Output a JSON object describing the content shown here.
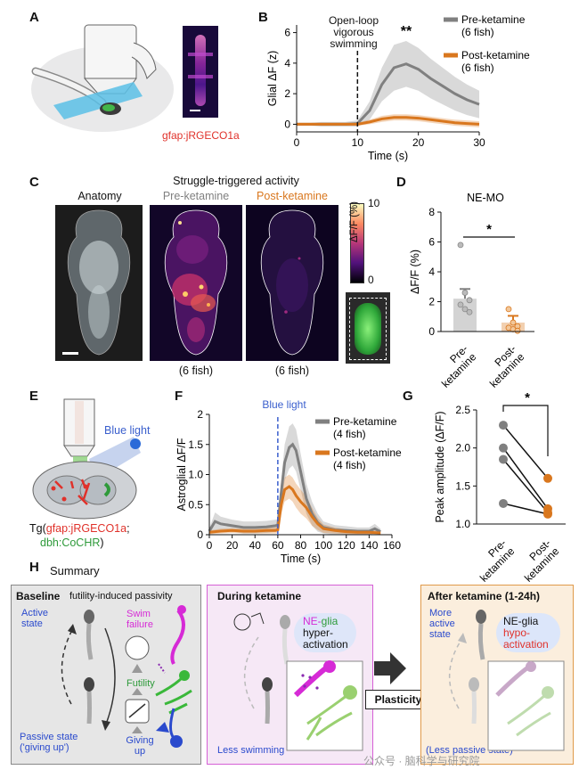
{
  "panels": {
    "a": {
      "label": "A",
      "indicator": "gfap:jRGECO1a"
    },
    "b": {
      "label": "B"
    },
    "c": {
      "label": "C",
      "title": "Struggle-triggered activity",
      "col_anatomy": "Anatomy",
      "col_pre": "Pre-ketamine",
      "col_post": "Post-ketamine",
      "n_pre": "(6 fish)",
      "n_post": "(6 fish)",
      "cbar_max": "10",
      "cbar_min": "0",
      "cbar_label": "ΔF/F (%)"
    },
    "d": {
      "label": "D"
    },
    "e": {
      "label": "E",
      "blue_light": "Blue light",
      "tg_prefix": "Tg(",
      "tg_gfap": "gfap:jRGECO1a",
      "tg_sep": ";",
      "tg_dbh": "dbh:CoCHR",
      "tg_suffix": ")"
    },
    "f": {
      "label": "F"
    },
    "g": {
      "label": "G"
    },
    "h": {
      "label": "H",
      "title": "Summary",
      "baseline": {
        "title": "Baseline",
        "subtitle": "futility-induced passivity",
        "active": "Active\nstate",
        "passive": "Passive state\n('giving up')",
        "swim_failure": "Swim\nfailure",
        "integral": "∫dt",
        "futility": "Futility",
        "giving_up": "Giving\nup"
      },
      "during": {
        "title": "During ketamine",
        "ne": "NE-",
        "glia": "glia",
        "hyper": "hyper-\nactivation",
        "less": "Less swimming"
      },
      "plasticity": "Plasticity",
      "after": {
        "title": "After ketamine (1-24h)",
        "more": "More\nactive\nstate",
        "ne_glia": "NE-glia",
        "hypo": "hypo-\nactivation",
        "less_passive": "(Less passive state)"
      }
    },
    "watermark": "公众号 · 脑科学与研究院"
  },
  "colors": {
    "pre": "#808080",
    "post": "#d9771e",
    "red": "#e0312a",
    "green": "#2e9a3a",
    "blue": "#3a5fcd",
    "magenta": "#d62ad6",
    "orange_box": "#e09a4a"
  },
  "chart_data": [
    {
      "id": "B",
      "type": "line",
      "xlabel": "Time (s)",
      "ylabel": "Glial ΔF (z)",
      "xlim": [
        0,
        30
      ],
      "ylim": [
        -0.5,
        6.5
      ],
      "xticks": [
        0,
        10,
        20,
        30
      ],
      "yticks": [
        0,
        2,
        4,
        6
      ],
      "annotation": "Open-loop\nvigorous\nswimming",
      "annotation_x": 10,
      "significance": "**",
      "series": [
        {
          "name": "Pre-ketamine\n(6 fish)",
          "color": "#808080",
          "x": [
            0,
            4,
            8,
            10,
            12,
            14,
            16,
            18,
            20,
            22,
            24,
            26,
            28,
            30
          ],
          "y": [
            0,
            0,
            0,
            0.05,
            0.9,
            2.6,
            3.7,
            3.95,
            3.6,
            3.0,
            2.5,
            2.0,
            1.6,
            1.3
          ],
          "band": [
            0,
            0.15,
            0.15,
            0.2,
            0.6,
            1.1,
            1.5,
            1.5,
            1.4,
            1.3,
            1.2,
            1.1,
            1.0,
            0.9
          ]
        },
        {
          "name": "Post-ketamine\n(6 fish)",
          "color": "#d9771e",
          "x": [
            0,
            4,
            8,
            10,
            12,
            14,
            16,
            18,
            20,
            22,
            24,
            26,
            28,
            30
          ],
          "y": [
            0,
            0,
            0,
            0,
            0.15,
            0.35,
            0.45,
            0.45,
            0.4,
            0.3,
            0.2,
            0.1,
            0.05,
            0
          ],
          "band": [
            0.1,
            0.1,
            0.1,
            0.1,
            0.15,
            0.2,
            0.2,
            0.2,
            0.2,
            0.2,
            0.2,
            0.2,
            0.2,
            0.2
          ]
        }
      ]
    },
    {
      "id": "D",
      "type": "bar",
      "title": "NE-MO",
      "ylabel": "ΔF/F (%)",
      "ylim": [
        0,
        8
      ],
      "yticks": [
        0,
        2,
        4,
        6,
        8
      ],
      "categories": [
        "Pre-\nketamine",
        "Post-\nketamine"
      ],
      "values": [
        2.2,
        0.6
      ],
      "errors": [
        0.65,
        0.45
      ],
      "points": [
        [
          5.8,
          2.6,
          2.1,
          1.8,
          1.5,
          1.3
        ],
        [
          1.5,
          0.6,
          0.35,
          0.25,
          0.15,
          0.05
        ]
      ],
      "significance": "*"
    },
    {
      "id": "F",
      "type": "line",
      "xlabel": "Time (s)",
      "ylabel": "Astroglial ΔF/F",
      "xlim": [
        0,
        160
      ],
      "ylim": [
        0,
        2
      ],
      "xticks": [
        0,
        20,
        40,
        60,
        80,
        100,
        120,
        140,
        160
      ],
      "yticks": [
        0,
        0.5,
        1,
        1.5,
        2
      ],
      "yticklabels": [
        "0",
        "0.5",
        "1.0",
        "1.5",
        "2"
      ],
      "annotation": "Blue light",
      "annotation_x": 60,
      "series": [
        {
          "name": "Pre-ketamine\n(4 fish)",
          "color": "#808080",
          "x": [
            0,
            5,
            10,
            20,
            30,
            40,
            50,
            58,
            60,
            63,
            66,
            70,
            73,
            76,
            80,
            85,
            90,
            95,
            100,
            110,
            120,
            130,
            140,
            145,
            150
          ],
          "y": [
            0.06,
            0.22,
            0.18,
            0.15,
            0.12,
            0.12,
            0.13,
            0.15,
            0.16,
            0.7,
            1.2,
            1.45,
            1.5,
            1.4,
            1.05,
            0.6,
            0.35,
            0.2,
            0.12,
            0.08,
            0.07,
            0.06,
            0.06,
            0.1,
            0.05
          ],
          "band": [
            0.05,
            0.15,
            0.12,
            0.1,
            0.1,
            0.1,
            0.1,
            0.1,
            0.1,
            0.2,
            0.3,
            0.35,
            0.35,
            0.35,
            0.3,
            0.25,
            0.2,
            0.15,
            0.1,
            0.08,
            0.07,
            0.06,
            0.06,
            0.08,
            0.05
          ]
        },
        {
          "name": "Post-ketamine\n(4 fish)",
          "color": "#d9771e",
          "x": [
            0,
            10,
            20,
            30,
            40,
            50,
            58,
            60,
            63,
            66,
            70,
            73,
            76,
            80,
            85,
            90,
            95,
            100,
            110,
            120,
            130,
            140,
            150
          ],
          "y": [
            0.04,
            0.06,
            0.07,
            0.06,
            0.06,
            0.07,
            0.07,
            0.08,
            0.5,
            0.75,
            0.8,
            0.75,
            0.65,
            0.55,
            0.45,
            0.3,
            0.18,
            0.1,
            0.07,
            0.05,
            0.04,
            0.04,
            0.03
          ],
          "band": [
            0.03,
            0.04,
            0.04,
            0.04,
            0.04,
            0.05,
            0.05,
            0.05,
            0.15,
            0.2,
            0.2,
            0.2,
            0.2,
            0.2,
            0.18,
            0.15,
            0.1,
            0.07,
            0.05,
            0.04,
            0.04,
            0.04,
            0.03
          ]
        }
      ]
    },
    {
      "id": "G",
      "type": "scatter",
      "ylabel": "Peak amplitude (ΔF/F)",
      "ylim": [
        1.0,
        2.5
      ],
      "yticks": [
        1.0,
        1.5,
        2.0,
        2.5
      ],
      "yticklabels": [
        "1.0",
        "1.5",
        "2.0",
        "2.5"
      ],
      "categories": [
        "Pre-\nketamine",
        "Post-\nketamine"
      ],
      "pairs": [
        [
          2.3,
          1.6
        ],
        [
          2.0,
          1.2
        ],
        [
          1.85,
          1.15
        ],
        [
          1.27,
          1.13
        ]
      ],
      "significance": "*"
    }
  ]
}
